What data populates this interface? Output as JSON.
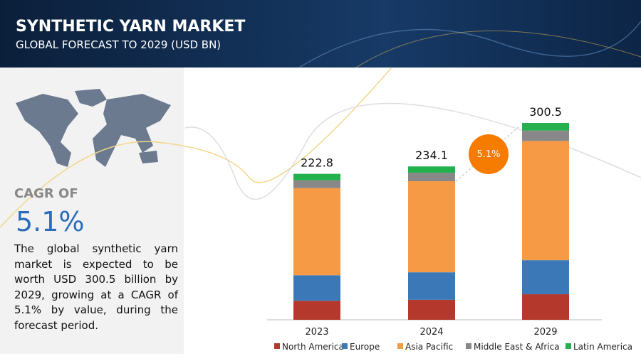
{
  "header": {
    "title": "SYNTHETIC YARN MARKET",
    "subtitle": "GLOBAL FORECAST TO 2029 (USD BN)"
  },
  "summary": {
    "cagr_label": "CAGR OF",
    "cagr_value": "5.1%",
    "text": "The global synthetic yarn market is expected to be worth USD  300.5 billion by 2029, growing at a CAGR of 5.1% by value, during the forecast period."
  },
  "chart_data": {
    "type": "stacked_bar",
    "categories": [
      "2023",
      "2024",
      "2029"
    ],
    "totals": [
      222.8,
      234.1,
      300.5
    ],
    "cagr_bubble": "5.1%",
    "series": [
      {
        "name": "North America",
        "color": "#b5382c",
        "values": [
          29,
          30.5,
          39
        ]
      },
      {
        "name": "Europe",
        "color": "#3a78b8",
        "values": [
          39,
          42,
          52
        ]
      },
      {
        "name": "Asia Pacific",
        "color": "#f79a46",
        "values": [
          133,
          139,
          182
        ]
      },
      {
        "name": "Middle East & Africa",
        "color": "#888888",
        "values": [
          12,
          13,
          16
        ]
      },
      {
        "name": "Latin America",
        "color": "#22b14c",
        "values": [
          9.8,
          9.6,
          11.5
        ]
      }
    ]
  }
}
